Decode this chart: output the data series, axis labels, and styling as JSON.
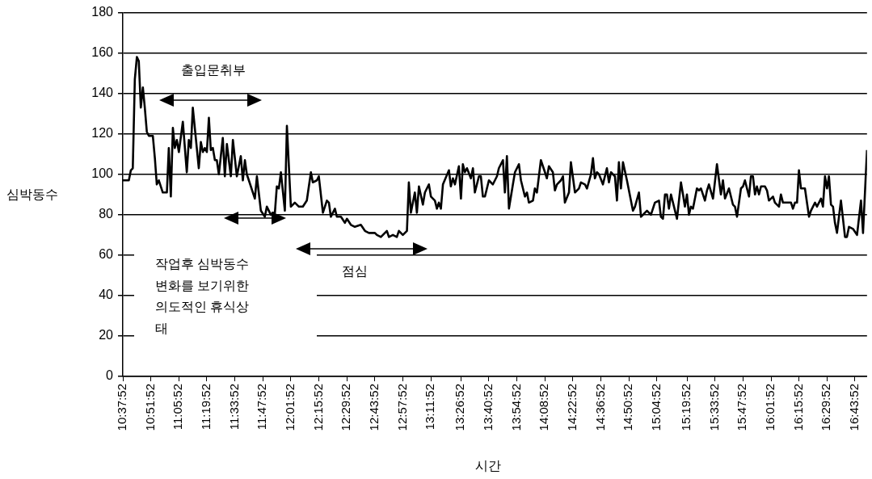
{
  "chart_data": {
    "type": "line",
    "xlabel": "시간",
    "ylabel": "심박동수",
    "xlim": [
      10.6311,
      16.8311
    ],
    "xticks": [
      {
        "value": 10.6311,
        "label": "10:37:52"
      },
      {
        "value": 10.8644,
        "label": "10:51:52"
      },
      {
        "value": 11.0978,
        "label": "11:05:52"
      },
      {
        "value": 11.3311,
        "label": "11:19:52"
      },
      {
        "value": 11.5644,
        "label": "11:33:52"
      },
      {
        "value": 11.7978,
        "label": "11:47:52"
      },
      {
        "value": 12.0311,
        "label": "12:01:52"
      },
      {
        "value": 12.2644,
        "label": "12:15:52"
      },
      {
        "value": 12.4978,
        "label": "12:29:52"
      },
      {
        "value": 12.7311,
        "label": "12:43:52"
      },
      {
        "value": 12.9644,
        "label": "12:57:52"
      },
      {
        "value": 13.1978,
        "label": "13:11:52"
      },
      {
        "value": 13.4478,
        "label": "13:26:52"
      },
      {
        "value": 13.6811,
        "label": "13:40:52"
      },
      {
        "value": 13.9144,
        "label": "13:54:52"
      },
      {
        "value": 14.1478,
        "label": "14:08:52"
      },
      {
        "value": 14.3811,
        "label": "14:22:52"
      },
      {
        "value": 14.6144,
        "label": "14:36:52"
      },
      {
        "value": 14.8478,
        "label": "14:50:52"
      },
      {
        "value": 15.0811,
        "label": "15:04:52"
      },
      {
        "value": 15.3311,
        "label": "15:19:52"
      },
      {
        "value": 15.5644,
        "label": "15:33:52"
      },
      {
        "value": 15.7978,
        "label": "15:47:52"
      },
      {
        "value": 16.0311,
        "label": "16:01:52"
      },
      {
        "value": 16.2644,
        "label": "16:15:52"
      },
      {
        "value": 16.4978,
        "label": "16:29:52"
      },
      {
        "value": 16.7311,
        "label": "16:43:52"
      }
    ],
    "ylim": [
      0,
      180
    ],
    "yticks": [
      0,
      20,
      40,
      60,
      80,
      100,
      120,
      140,
      160,
      180
    ],
    "grid": "y",
    "annotations": [
      "출입문취부",
      "작업후 심박동수 변화를 보기위한 의도적인 휴식상태",
      "점심"
    ],
    "series": [
      {
        "color": "#000000",
        "x": [
          10.6311,
          10.681,
          10.698,
          10.714,
          10.731,
          10.748,
          10.764,
          10.781,
          10.798,
          10.814,
          10.831,
          10.848,
          10.881,
          10.898,
          10.914,
          10.931,
          10.964,
          10.998,
          11.014,
          11.031,
          11.048,
          11.064,
          11.081,
          11.098,
          11.131,
          11.164,
          11.181,
          11.198,
          11.214,
          11.264,
          11.281,
          11.298,
          11.314,
          11.331,
          11.348,
          11.364,
          11.381,
          11.398,
          11.414,
          11.431,
          11.464,
          11.481,
          11.498,
          11.531,
          11.548,
          11.581,
          11.614,
          11.631,
          11.648,
          11.664,
          11.681,
          11.731,
          11.748,
          11.781,
          11.814,
          11.831,
          11.864,
          11.881,
          11.898,
          11.914,
          11.931,
          11.948,
          11.981,
          11.998,
          12.031,
          12.064,
          12.098,
          12.131,
          12.164,
          12.198,
          12.214,
          12.248,
          12.264,
          12.298,
          12.331,
          12.348,
          12.364,
          12.398,
          12.414,
          12.448,
          12.481,
          12.498,
          12.531,
          12.564,
          12.614,
          12.648,
          12.681,
          12.731,
          12.748,
          12.781,
          12.831,
          12.848,
          12.881,
          12.914,
          12.931,
          12.964,
          12.998,
          13.014,
          13.031,
          13.064,
          13.081,
          13.098,
          13.131,
          13.148,
          13.181,
          13.198,
          13.231,
          13.248,
          13.264,
          13.281,
          13.298,
          13.348,
          13.364,
          13.381,
          13.398,
          13.431,
          13.448,
          13.464,
          13.481,
          13.498,
          13.531,
          13.548,
          13.564,
          13.598,
          13.614,
          13.631,
          13.648,
          13.681,
          13.714,
          13.748,
          13.764,
          13.798,
          13.814,
          13.831,
          13.848,
          13.881,
          13.898,
          13.931,
          13.948,
          13.981,
          13.998,
          14.014,
          14.048,
          14.064,
          14.081,
          14.114,
          14.148,
          14.164,
          14.181,
          14.214,
          14.231,
          14.248,
          14.281,
          14.298,
          14.314,
          14.348,
          14.364,
          14.398,
          14.431,
          14.448,
          14.481,
          14.498,
          14.531,
          14.548,
          14.564,
          14.581,
          14.598,
          14.631,
          14.664,
          14.681,
          14.698,
          14.731,
          14.748,
          14.764,
          14.781,
          14.798,
          14.831,
          14.881,
          14.898,
          14.931,
          14.948,
          14.981,
          14.998,
          15.031,
          15.064,
          15.098,
          15.114,
          15.131,
          15.148,
          15.164,
          15.181,
          15.198,
          15.248,
          15.281,
          15.298,
          15.314,
          15.331,
          15.348,
          15.364,
          15.381,
          15.414,
          15.431,
          15.448,
          15.481,
          15.498,
          15.514,
          15.548,
          15.581,
          15.614,
          15.631,
          15.648,
          15.681,
          15.714,
          15.731,
          15.748,
          15.781,
          15.798,
          15.814,
          15.848,
          15.864,
          15.881,
          15.898,
          15.914,
          15.931,
          15.948,
          15.981,
          15.998,
          16.014,
          16.048,
          16.064,
          16.098,
          16.114,
          16.131,
          16.164,
          16.198,
          16.214,
          16.231,
          16.248,
          16.264,
          16.281,
          16.314,
          16.348,
          16.364,
          16.398,
          16.414,
          16.448,
          16.464,
          16.481,
          16.498,
          16.514,
          16.531,
          16.548,
          16.564,
          16.581,
          16.614,
          16.648,
          16.664,
          16.681,
          16.714,
          16.748,
          16.781,
          16.798,
          16.831
        ],
        "values": [
          97,
          97,
          102,
          103,
          147,
          158,
          156,
          133,
          143,
          133,
          121,
          119,
          119,
          108,
          95,
          97,
          91,
          91,
          113,
          89,
          123,
          113,
          117,
          111,
          126,
          101,
          117,
          113,
          133,
          103,
          116,
          111,
          113,
          111,
          128,
          112,
          113,
          107,
          107,
          100,
          118,
          99,
          115,
          99,
          117,
          99,
          109,
          97,
          107,
          100,
          97,
          88,
          99,
          82,
          79,
          84,
          80,
          81,
          81,
          94,
          93,
          101,
          82,
          124,
          84,
          86,
          84,
          84,
          87,
          101,
          96,
          97,
          99,
          81,
          87,
          86,
          79,
          83,
          79,
          79,
          76,
          78,
          75,
          74,
          75,
          72,
          71,
          71,
          70,
          69,
          72,
          69,
          70,
          69,
          72,
          70,
          72,
          96,
          81,
          91,
          81,
          94,
          85,
          91,
          95,
          89,
          87,
          83,
          86,
          83,
          95,
          102,
          94,
          98,
          95,
          104,
          88,
          105,
          101,
          103,
          98,
          103,
          91,
          99,
          99,
          89,
          89,
          97,
          95,
          99,
          103,
          107,
          91,
          109,
          83,
          95,
          101,
          105,
          97,
          89,
          91,
          86,
          87,
          93,
          91,
          107,
          101,
          98,
          104,
          101,
          92,
          95,
          97,
          99,
          86,
          91,
          106,
          91,
          93,
          96,
          95,
          93,
          100,
          108,
          98,
          101,
          100,
          95,
          103,
          96,
          101,
          99,
          87,
          106,
          93,
          106,
          97,
          82,
          84,
          91,
          79,
          81,
          82,
          80,
          86,
          87,
          79,
          78,
          90,
          90,
          83,
          90,
          78,
          96,
          90,
          84,
          90,
          80,
          84,
          83,
          93,
          92,
          93,
          87,
          92,
          95,
          88,
          105,
          90,
          97,
          88,
          93,
          85,
          84,
          79,
          93,
          94,
          97,
          89,
          99,
          99,
          90,
          94,
          90,
          94,
          94,
          92,
          87,
          89,
          86,
          84,
          90,
          86,
          86,
          86,
          83,
          86,
          86,
          102,
          93,
          93,
          79,
          82,
          86,
          84,
          88,
          84,
          99,
          93,
          99,
          85,
          84,
          76,
          71,
          87,
          69,
          69,
          74,
          73,
          70,
          87,
          71,
          112
        ]
      }
    ]
  }
}
